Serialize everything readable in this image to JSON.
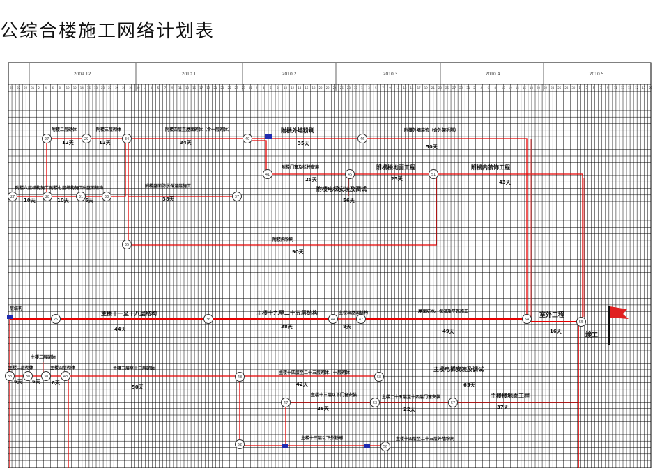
{
  "title": "公综合楼施工网络计划表",
  "months": [
    "2009.12",
    "2010.1",
    "2010.2",
    "2010.3",
    "2010.4",
    "2010.5"
  ],
  "colors": {
    "critical": "#e60000",
    "link": "#d33",
    "grid": "#000000",
    "node_border": "#333333",
    "marker": "#1f2bb0",
    "flag": "#e02020"
  },
  "activities": {
    "a1": {
      "label": "附楼二层砌体",
      "dur": "12天"
    },
    "a2": {
      "label": "附楼三层砌体",
      "dur": "12天"
    },
    "a3": {
      "label": "附楼四层至屋面砌体（含一层砌体）",
      "dur": "34天"
    },
    "a4": {
      "label": "附楼外墙粉刷",
      "dur": "35天"
    },
    "a5": {
      "label": "附楼外墙装饰（含外架拆除）",
      "dur": "50天"
    },
    "a6": {
      "label": "附楼门窗及栏杆安装",
      "dur": "25天"
    },
    "a7": {
      "label": "附楼楼地面工程",
      "dur": "25天"
    },
    "a8": {
      "label": "附楼内装饰工程",
      "dur": "43天"
    },
    "a9": {
      "label": "附楼六层结构施工",
      "dur": "10天"
    },
    "a10": {
      "label": "附楼七层结构施工",
      "dur": "10天"
    },
    "a11": {
      "label": "出屋面结构",
      "dur": "6天"
    },
    "a12": {
      "label": "附楼屋面防水保温层施工",
      "dur": "38天"
    },
    "a13": {
      "label": "附楼电梯安装及调试",
      "dur": "56天"
    },
    "a14": {
      "label": "附楼内粉刷",
      "dur": "90天"
    },
    "a15": {
      "label": "层结构",
      "dur": ""
    },
    "a16": {
      "label": "主楼十一至十八层结构",
      "dur": "44天"
    },
    "a17": {
      "label": "主楼十九至二十五层结构",
      "dur": "38天"
    },
    "a18": {
      "label": "主楼出屋面结构",
      "dur": "8天"
    },
    "a19": {
      "label": "屋面防水、保温及平瓦施工",
      "dur": "49天"
    },
    "a20": {
      "label": "室外工程",
      "dur": "16天"
    },
    "a21": {
      "label": "竣工",
      "dur": ""
    },
    "a22": {
      "label": "主楼三层砌体",
      "dur": ""
    },
    "a23": {
      "label": "主楼二层砌体",
      "dur": "6天"
    },
    "a24": {
      "label": "",
      "dur": "6天"
    },
    "a25": {
      "label": "主楼四层砌体",
      "dur": "6天"
    },
    "a26": {
      "label": "主楼五层至十三层砌体",
      "dur": "50天"
    },
    "a27": {
      "label": "主楼十四层至二十五层砌体、一层砌体",
      "dur": "42天"
    },
    "a28": {
      "label": "主楼电梯安装及调试",
      "dur": "65天"
    },
    "a29": {
      "label": "主楼十三层以下门窗安装",
      "dur": "26天"
    },
    "a30": {
      "label": "主楼二十五层至十四层门窗安装",
      "dur": "22天"
    },
    "a31": {
      "label": "主楼楼地面工程",
      "dur": "37天"
    },
    "a32": {
      "label": "主楼十三层以下外粉刷",
      "dur": ""
    },
    "a33": {
      "label": "主楼十四层至二十五层外墙粉刷",
      "dur": ""
    }
  },
  "nodes": [
    "27",
    "29",
    "34",
    "40",
    "46",
    "41",
    "45",
    "51",
    "37",
    "28",
    "31",
    "33",
    "37",
    "35",
    "26",
    "44",
    "47",
    "54",
    "55",
    "33",
    "38",
    "43",
    "48",
    "53",
    "57",
    "58"
  ]
}
